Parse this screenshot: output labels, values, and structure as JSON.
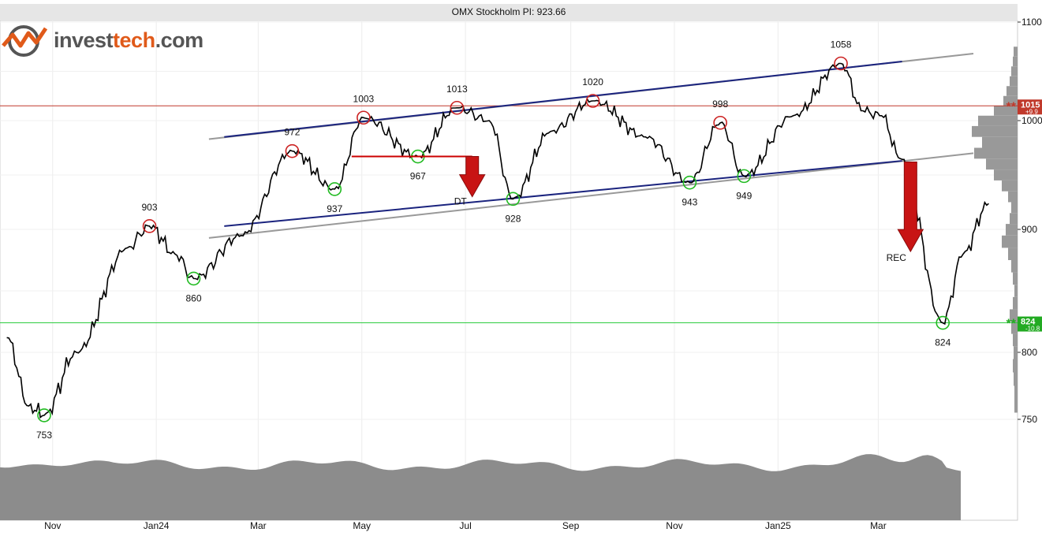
{
  "title": "OMX Stockholm PI: 923.66",
  "logo": {
    "part1": "invest",
    "part2": "tech",
    "part3": ".com"
  },
  "colors": {
    "price": "#000000",
    "top": "#cc2222",
    "bottom": "#22bb22",
    "channel_upper": "#1a237e",
    "channel_lower": "#999999",
    "resistance": "#c0392b",
    "support": "#2ecc40",
    "volume": "#8c8c8c",
    "histogram": "#999999"
  },
  "chart_data": {
    "type": "line",
    "title": "OMX Stockholm PI: 923.66",
    "last_value": 923.66,
    "y_axis": {
      "ticks": [
        750,
        800,
        900,
        1000,
        1100
      ],
      "range": [
        740,
        1105
      ]
    },
    "x_axis": {
      "ticks": [
        "Nov",
        "Jan24",
        "Mar",
        "May",
        "Jul",
        "Sep",
        "Nov",
        "Jan25",
        "Mar"
      ]
    },
    "key_points": [
      {
        "date": "2023-10-05",
        "value": 812
      },
      {
        "date": "2023-10-18",
        "value": 760
      },
      {
        "date": "2023-10-27",
        "value": 753,
        "label": "753",
        "kind": "bottom"
      },
      {
        "date": "2023-11-15",
        "value": 800
      },
      {
        "date": "2023-12-15",
        "value": 885
      },
      {
        "date": "2023-12-28",
        "value": 903,
        "label": "903",
        "kind": "top"
      },
      {
        "date": "2024-01-12",
        "value": 880
      },
      {
        "date": "2024-01-23",
        "value": 860,
        "label": "860",
        "kind": "bottom"
      },
      {
        "date": "2024-02-20",
        "value": 895
      },
      {
        "date": "2024-03-21",
        "value": 972,
        "label": "972",
        "kind": "top"
      },
      {
        "date": "2024-04-15",
        "value": 937,
        "label": "937",
        "kind": "bottom"
      },
      {
        "date": "2024-05-02",
        "value": 1003,
        "label": "1003",
        "kind": "top"
      },
      {
        "date": "2024-06-03",
        "value": 967,
        "label": "967",
        "kind": "bottom"
      },
      {
        "date": "2024-06-26",
        "value": 1013,
        "label": "1013",
        "kind": "top"
      },
      {
        "date": "2024-07-15",
        "value": 1000
      },
      {
        "date": "2024-07-29",
        "value": 928,
        "label": "928",
        "kind": "bottom"
      },
      {
        "date": "2024-08-20",
        "value": 990
      },
      {
        "date": "2024-09-14",
        "value": 1020,
        "label": "1020",
        "kind": "top"
      },
      {
        "date": "2024-10-15",
        "value": 985
      },
      {
        "date": "2024-11-10",
        "value": 943,
        "label": "943",
        "kind": "bottom"
      },
      {
        "date": "2024-11-28",
        "value": 998,
        "label": "998",
        "kind": "top"
      },
      {
        "date": "2024-12-12",
        "value": 949,
        "label": "949",
        "kind": "bottom"
      },
      {
        "date": "2025-01-10",
        "value": 1005
      },
      {
        "date": "2025-02-07",
        "value": 1058,
        "label": "1058",
        "kind": "top"
      },
      {
        "date": "2025-02-20",
        "value": 1010
      },
      {
        "date": "2025-03-03",
        "value": 1005
      },
      {
        "date": "2025-03-14",
        "value": 965
      },
      {
        "date": "2025-04-08",
        "value": 824,
        "label": "824",
        "kind": "bottom"
      },
      {
        "date": "2025-04-20",
        "value": 880
      },
      {
        "date": "2025-05-05",
        "value": 923.66
      }
    ],
    "lines": {
      "resistance": {
        "value": 1015,
        "label": "1015",
        "sub": "+9.9"
      },
      "support": {
        "value": 824,
        "label": "824",
        "sub": "-10.8"
      },
      "channel_upper": {
        "start": {
          "date": "2024-02-10",
          "value": 985
        },
        "end": {
          "date": "2025-03-15",
          "value": 1060
        }
      },
      "channel_lower": {
        "start": {
          "date": "2024-02-10",
          "value": 903
        },
        "end": {
          "date": "2025-03-15",
          "value": 963
        }
      },
      "channel_upper_ext": {
        "start": {
          "date": "2024-02-01",
          "value": 983
        },
        "end": {
          "date": "2025-04-26",
          "value": 1068
        }
      },
      "channel_lower_ext": {
        "start": {
          "date": "2024-02-01",
          "value": 893
        },
        "end": {
          "date": "2025-04-26",
          "value": 970
        }
      }
    },
    "patterns": [
      {
        "label": "DT",
        "neckline": 967,
        "neckline_start": "2024-04-25",
        "neckline_end": "2024-07-05",
        "arrow_date": "2024-07-05",
        "arrow_from": 967,
        "arrow_to": 930
      },
      {
        "label": "REC",
        "arrow_date": "2025-03-20",
        "arrow_from": 962,
        "arrow_to": 882
      }
    ]
  }
}
